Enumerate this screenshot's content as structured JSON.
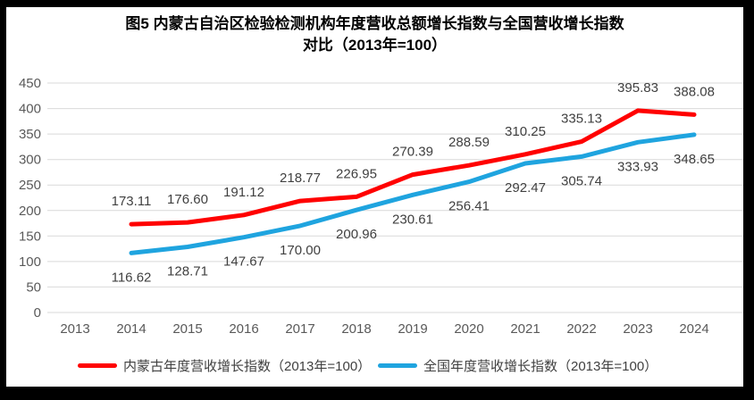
{
  "title": {
    "line1": "图5  内蒙古自治区检验检测机构年度营收总额增长指数与全国营收增长指数",
    "line2": "对比（2013年=100）"
  },
  "chart_data": {
    "type": "line",
    "categories": [
      "2013",
      "2014",
      "2015",
      "2016",
      "2017",
      "2018",
      "2019",
      "2020",
      "2021",
      "2022",
      "2023",
      "2024"
    ],
    "series": [
      {
        "name": "内蒙古年度营收增长指数（2013年=100）",
        "color": "#FF0000",
        "label_position": "above",
        "values": [
          null,
          173.11,
          176.6,
          191.12,
          218.77,
          226.95,
          270.39,
          288.59,
          310.25,
          335.13,
          395.83,
          388.08
        ]
      },
      {
        "name": "全国年度营收增长指数（2013年=100）",
        "color": "#1FA4DF",
        "label_position": "below",
        "values": [
          null,
          116.62,
          128.71,
          147.67,
          170.0,
          200.96,
          230.61,
          256.41,
          292.47,
          305.74,
          333.93,
          348.65
        ]
      }
    ],
    "ylim": [
      0,
      450
    ],
    "ytick_step": 50,
    "grid": "horizontal",
    "legend_position": "bottom",
    "decimals": 2,
    "colors": {
      "gridline": "#D9D9D9",
      "axis_labels": "#595959",
      "data_labels": "#404040",
      "title": "#000000",
      "legend_text": "#404040",
      "frame": "#000000",
      "background": "#FFFFFF"
    }
  }
}
